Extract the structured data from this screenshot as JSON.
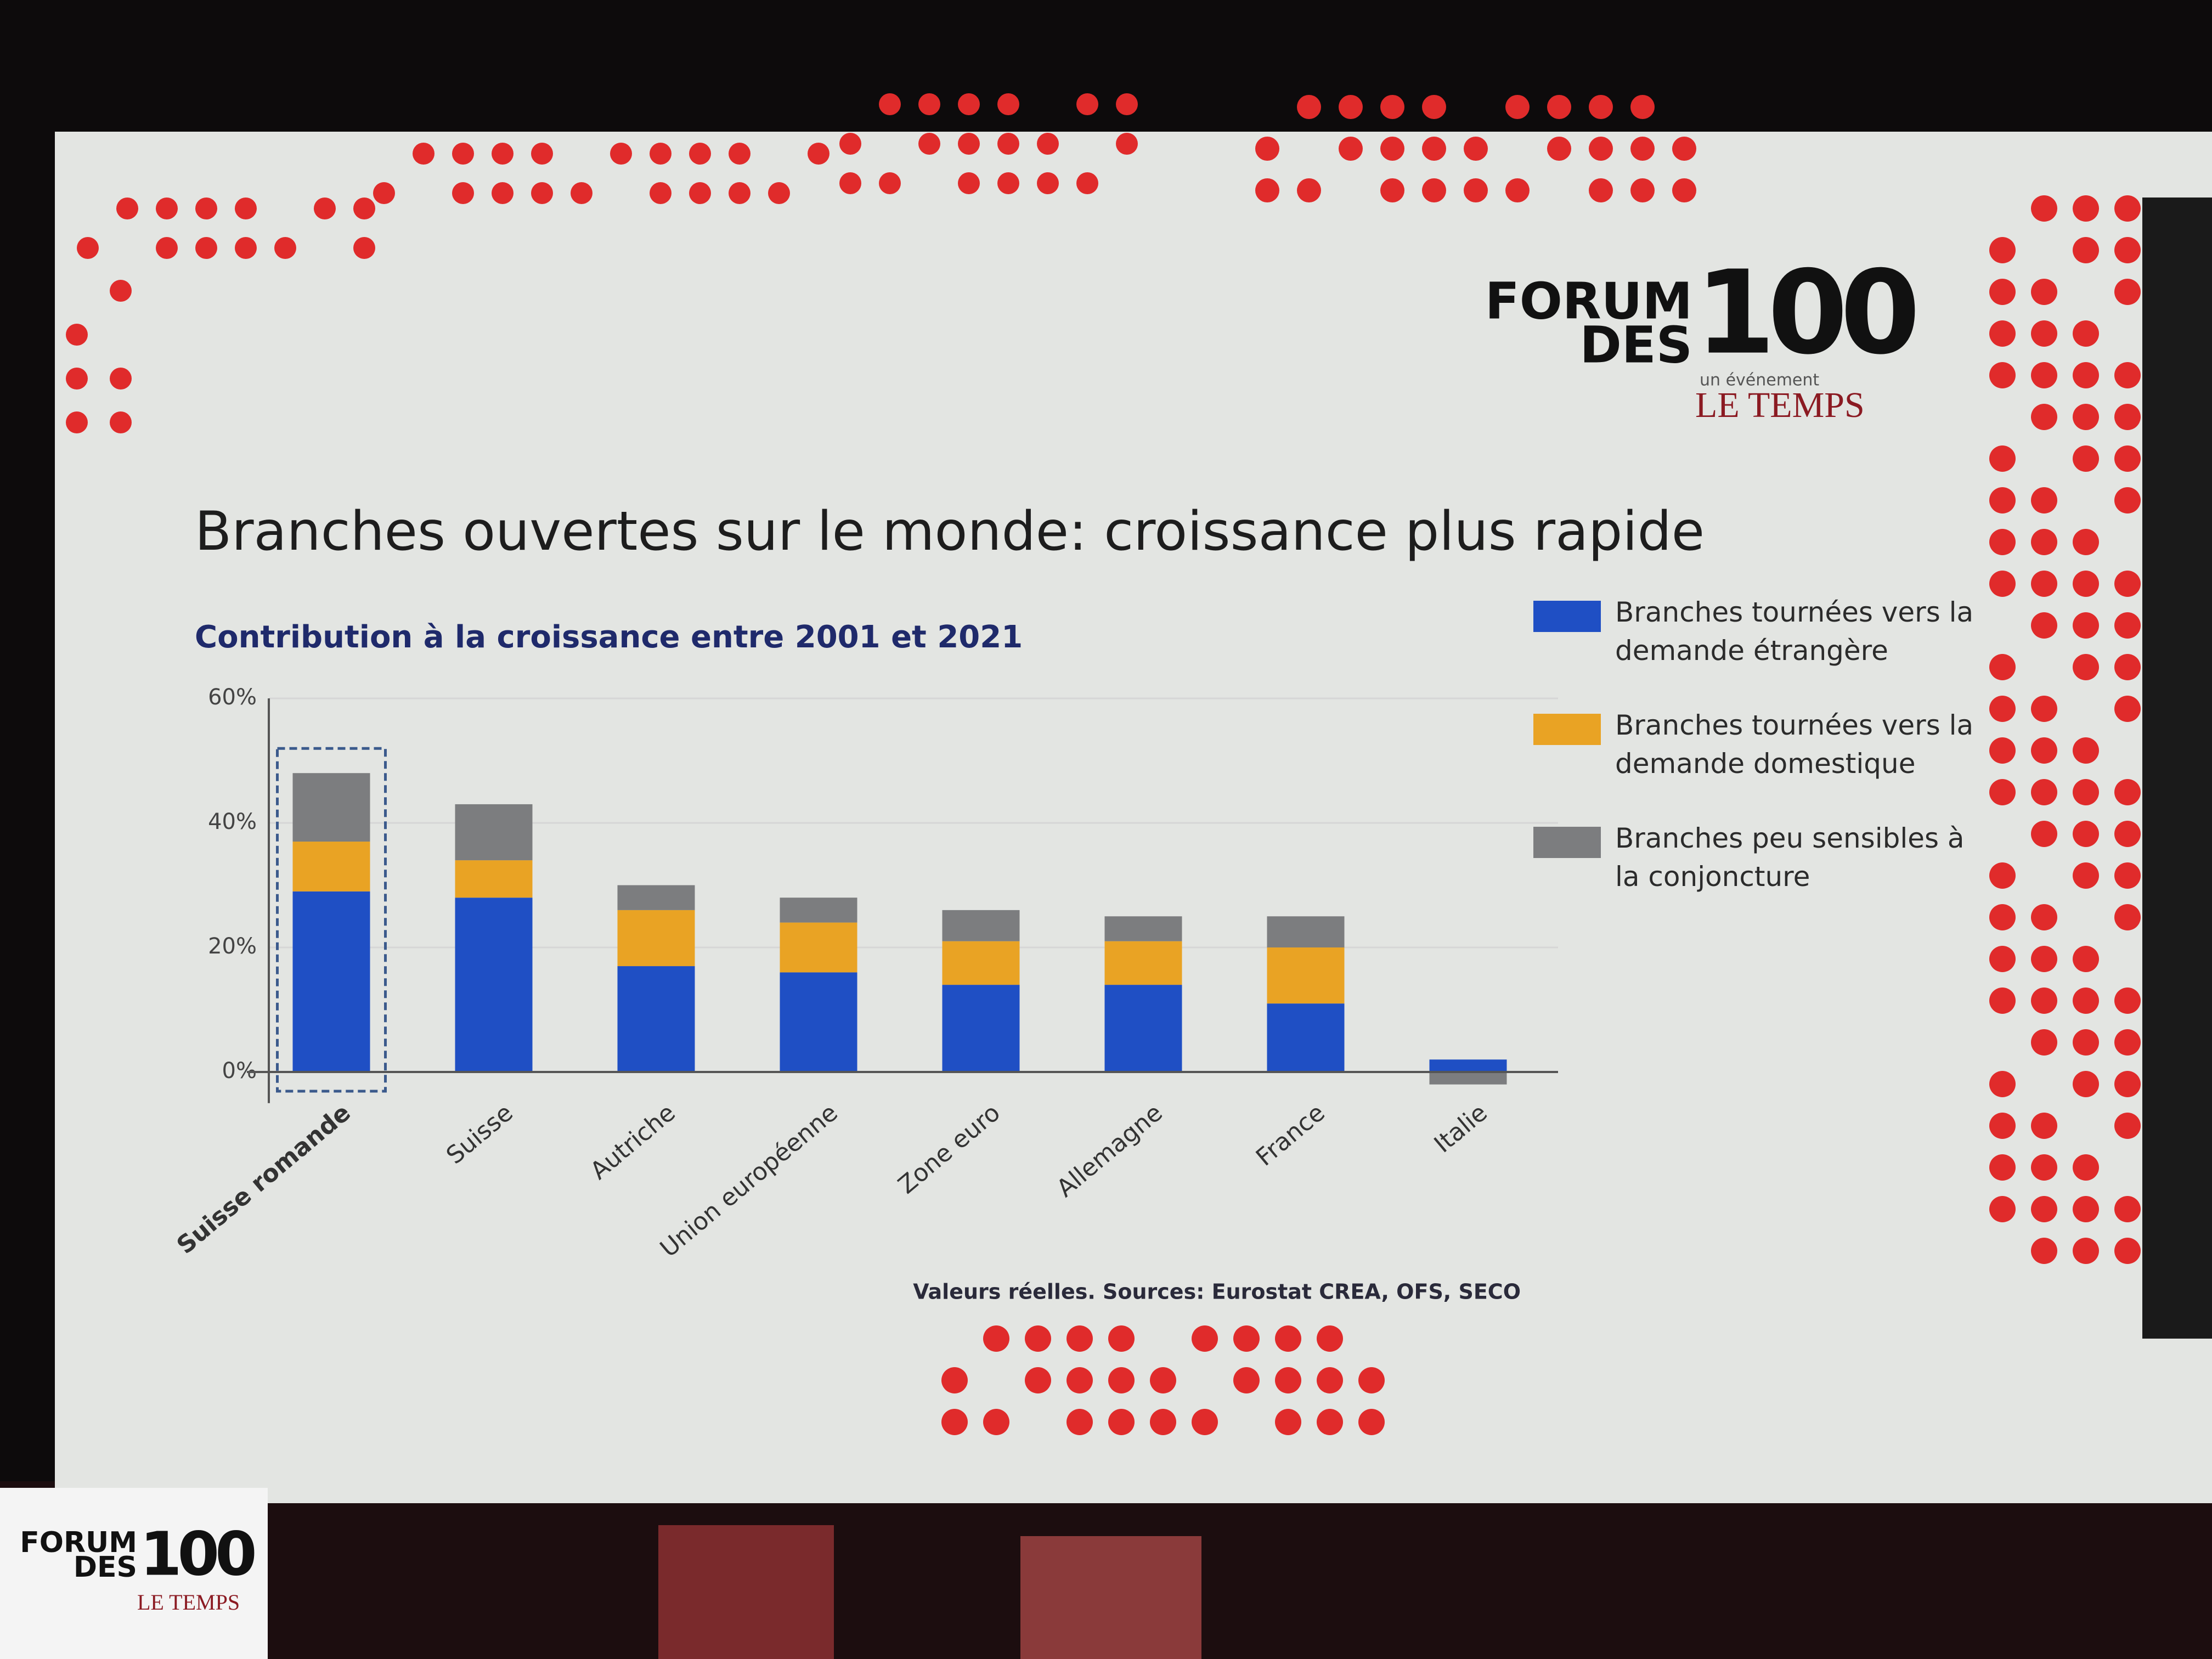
{
  "logo": {
    "line1": "FORUM",
    "line2": "DES",
    "number": "100",
    "tagline": "un événement",
    "brand": "LE TEMPS"
  },
  "stage_logo": {
    "line1": "FORUM",
    "line2": "DES",
    "number": "100",
    "brand": "LE TEMPS"
  },
  "chart_data": {
    "type": "stacked_bar",
    "title": "Branches ouvertes sur le monde: croissance plus rapide",
    "subtitle": "Contribution à la croissance entre 2001 et 2021",
    "note": "Valeurs réelles. Sources: Eurostat CREA, OFS, SECO",
    "categories": [
      "Suisse romande",
      "Suisse",
      "Autriche",
      "Union européenne",
      "Zone euro",
      "Allemagne",
      "France",
      "Italie"
    ],
    "series": [
      {
        "name": "Branches tournées vers la demande étrangère",
        "color": "#1f4fc4",
        "values": [
          29,
          28,
          17,
          16,
          14,
          14,
          11,
          2
        ]
      },
      {
        "name": "Branches tournées vers la demande domestique",
        "color": "#e9a324",
        "values": [
          8,
          6,
          9,
          8,
          7,
          7,
          9,
          0
        ]
      },
      {
        "name": "Branches peu sensibles à la conjoncture",
        "color": "#7c7d7f",
        "values": [
          11,
          9,
          4,
          4,
          5,
          4,
          5,
          -2
        ]
      }
    ],
    "ylim": [
      -5,
      60
    ],
    "yticks": [
      {
        "value": 0,
        "label": "0%"
      },
      {
        "value": 20,
        "label": "20%"
      },
      {
        "value": 40,
        "label": "40%"
      },
      {
        "value": 60,
        "label": "60%"
      }
    ],
    "grid": true
  }
}
